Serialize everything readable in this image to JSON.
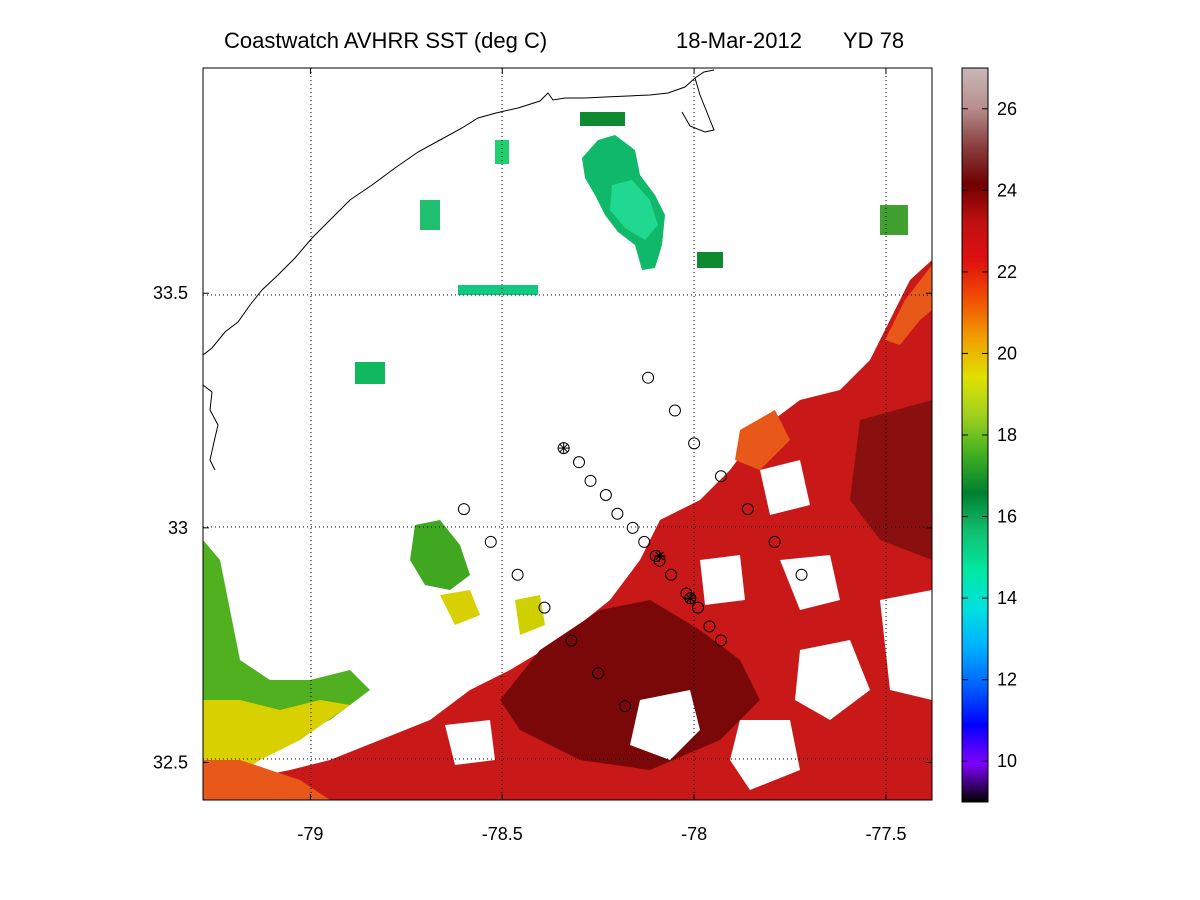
{
  "title": {
    "left": "Coastwatch   AVHRR   SST  (deg C)",
    "date": "18-Mar-2012",
    "yearday": "YD 78"
  },
  "axes": {
    "x_ticks": [
      "-79",
      "-78.5",
      "-78",
      "-77.5"
    ],
    "x_values": [
      -79,
      -78.5,
      -78,
      -77.5
    ],
    "y_ticks": [
      "33.5",
      "33",
      "32.5"
    ],
    "y_values": [
      33.5,
      33,
      32.5
    ],
    "xlim": [
      -79.28,
      -77.38
    ],
    "ylim": [
      32.42,
      33.98
    ],
    "grid": true
  },
  "colorbar": {
    "ticks": [
      "10",
      "12",
      "14",
      "16",
      "18",
      "20",
      "22",
      "24",
      "26"
    ],
    "tick_values": [
      10,
      12,
      14,
      16,
      18,
      20,
      22,
      24,
      26
    ],
    "range": [
      9,
      27
    ],
    "colors": [
      "#000000",
      "#8000ff",
      "#0000ff",
      "#0060ff",
      "#00b0ff",
      "#00e0e0",
      "#00e8a0",
      "#10c070",
      "#008030",
      "#40b020",
      "#a0d020",
      "#e0e000",
      "#f0a000",
      "#f05000",
      "#e01010",
      "#c01010",
      "#700000",
      "#8a4040",
      "#b89090",
      "#c8b8b8"
    ]
  },
  "chart_data": {
    "type": "scatter",
    "xlabel": "",
    "ylabel": "",
    "stations": [
      [
        -78.12,
        33.32
      ],
      [
        -78.05,
        33.25
      ],
      [
        -78.0,
        33.18
      ],
      [
        -77.93,
        33.11
      ],
      [
        -77.86,
        33.04
      ],
      [
        -77.79,
        32.97
      ],
      [
        -77.72,
        32.9
      ],
      [
        -78.34,
        33.17
      ],
      [
        -78.3,
        33.14
      ],
      [
        -78.27,
        33.1
      ],
      [
        -78.23,
        33.07
      ],
      [
        -78.2,
        33.03
      ],
      [
        -78.16,
        33.0
      ],
      [
        -78.13,
        32.97
      ],
      [
        -78.1,
        32.94
      ],
      [
        -78.09,
        32.93
      ],
      [
        -78.06,
        32.9
      ],
      [
        -78.02,
        32.86
      ],
      [
        -78.01,
        32.85
      ],
      [
        -77.99,
        32.83
      ],
      [
        -77.96,
        32.79
      ],
      [
        -77.93,
        32.76
      ],
      [
        -78.6,
        33.04
      ],
      [
        -78.53,
        32.97
      ],
      [
        -78.46,
        32.9
      ],
      [
        -78.39,
        32.83
      ],
      [
        -78.32,
        32.76
      ],
      [
        -78.25,
        32.69
      ],
      [
        -78.18,
        32.62
      ]
    ],
    "marked_stations": [
      [
        -78.34,
        33.17
      ],
      [
        -78.09,
        32.94
      ],
      [
        -78.01,
        32.85
      ]
    ]
  }
}
